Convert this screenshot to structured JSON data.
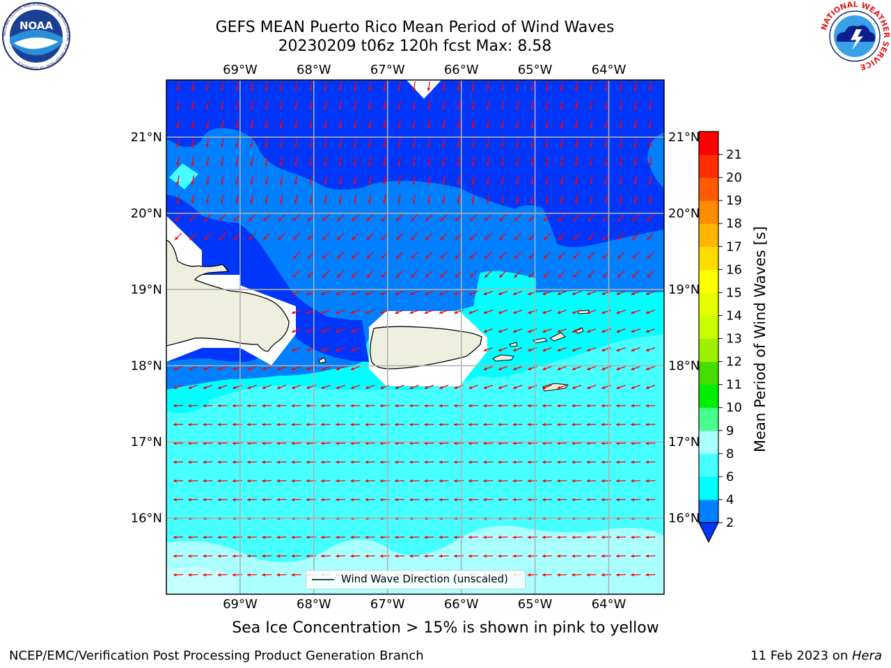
{
  "title": {
    "line1": "GEFS MEAN Puerto Rico Mean Period of Wind Waves",
    "line2": "20230209 t06z 120h fcst   Max: 8.58"
  },
  "logos": {
    "left": {
      "name": "noaa-logo",
      "text": "NOAA",
      "ring_text": "NATIONAL OCEANIC AND ATMOSPHERIC ADMINISTRATION · U.S. DEPARTMENT OF COMMERCE"
    },
    "right": {
      "name": "nws-logo",
      "ring_text": "NATIONAL WEATHER SERVICE"
    }
  },
  "map": {
    "lon_labels": [
      "69°W",
      "68°W",
      "67°W",
      "66°W",
      "65°W",
      "64°W"
    ],
    "lat_labels": [
      "21°N",
      "20°N",
      "19°N",
      "18°N",
      "17°N",
      "16°N"
    ],
    "lon_range": [
      -70.0,
      -63.25
    ],
    "lat_range": [
      15.0,
      21.75
    ],
    "grid": true,
    "colors": {
      "c2_4": "#0036fa",
      "c4_6": "#0080ff",
      "c6_8": "#00ffff",
      "c8_9": "#46ffff",
      "c9_10": "#aaffff",
      "land": "#efefdf",
      "arrow": "#ff0000",
      "coast": "#000000"
    }
  },
  "legend": {
    "label": "Wind Wave Direction (unscaled)"
  },
  "colorbar": {
    "label": "Mean Period of Wind Waves [s]",
    "ticks": [
      "2",
      "4",
      "6",
      "8",
      "9",
      "10",
      "11",
      "12",
      "13",
      "14",
      "15",
      "16",
      "17",
      "18",
      "19",
      "20",
      "21"
    ],
    "colors": [
      "#0036fa",
      "#0080ff",
      "#00ffff",
      "#46ffff",
      "#aaffff",
      "#46ff8c",
      "#00f000",
      "#46dc00",
      "#9cf000",
      "#c8ff00",
      "#e6ff00",
      "#ffff00",
      "#ffdc00",
      "#ffb400",
      "#ff8c00",
      "#ff5a00",
      "#ff2d00",
      "#ff0000"
    ],
    "extend": "min"
  },
  "subtitle": "Sea Ice Concentration > 15% is shown in pink to yellow",
  "footer": {
    "left": "NCEP/EMC/Verification Post Processing Product Generation Branch",
    "date": "11 Feb 2023 on ",
    "machine": "Hera"
  }
}
